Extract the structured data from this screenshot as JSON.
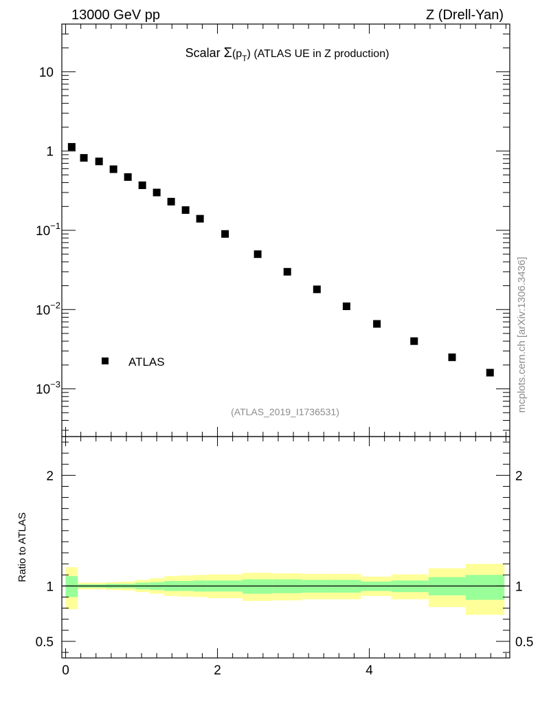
{
  "header": {
    "left": "13000 GeV pp",
    "right": "Z (Drell-Yan)"
  },
  "side_text": "mcplots.cern.ch [arXiv:1306.3436]",
  "chart_data": [
    {
      "type": "scatter",
      "title_parts": {
        "prefix": "Scalar ",
        "sigma": "Σ",
        "open": "(p",
        "sub": "T",
        "close": ")",
        "suffix": " (ATLAS UE in Z production)"
      },
      "yscale": "log",
      "ylim": [
        0.00025,
        40
      ],
      "xlim": [
        -0.05,
        5.85
      ],
      "yticks": [
        {
          "value": 10,
          "base": "10",
          "exp": ""
        },
        {
          "value": 1,
          "base": "1",
          "exp": ""
        },
        {
          "value": 0.1,
          "base": "10",
          "exp": "−1"
        },
        {
          "value": 0.01,
          "base": "10",
          "exp": "−2"
        },
        {
          "value": 0.001,
          "base": "10",
          "exp": "−3"
        }
      ],
      "legend": {
        "label": "ATLAS",
        "position": "bottom-left"
      },
      "watermark": "(ATLAS_2019_I1736531)",
      "series": [
        {
          "name": "ATLAS",
          "marker": "square",
          "color": "#000000",
          "x": [
            0.08,
            0.24,
            0.44,
            0.63,
            0.82,
            1.01,
            1.2,
            1.39,
            1.58,
            1.77,
            2.1,
            2.53,
            2.92,
            3.31,
            3.7,
            4.1,
            4.59,
            5.09,
            5.59
          ],
          "y": [
            1.13,
            0.82,
            0.74,
            0.59,
            0.47,
            0.37,
            0.3,
            0.23,
            0.18,
            0.14,
            0.09,
            0.05,
            0.03,
            0.018,
            0.011,
            0.0066,
            0.004,
            0.0025,
            0.0016
          ]
        }
      ]
    },
    {
      "type": "area",
      "ylabel": "Ratio to ATLAS",
      "ylim": [
        0.35,
        2.35
      ],
      "xlim": [
        -0.05,
        5.85
      ],
      "xticks": [
        0,
        2,
        4
      ],
      "yticks": [
        0.5,
        1,
        2
      ],
      "reference_line": 1,
      "bands": [
        {
          "color": "#ffff99",
          "bins": [
            {
              "x0": 0.0,
              "x1": 0.16,
              "lo": 0.79,
              "hi": 1.17
            },
            {
              "x0": 0.16,
              "x1": 0.34,
              "lo": 0.97,
              "hi": 1.03
            },
            {
              "x0": 0.34,
              "x1": 0.53,
              "lo": 0.97,
              "hi": 1.03
            },
            {
              "x0": 0.53,
              "x1": 0.73,
              "lo": 0.965,
              "hi": 1.035
            },
            {
              "x0": 0.73,
              "x1": 0.92,
              "lo": 0.96,
              "hi": 1.04
            },
            {
              "x0": 0.92,
              "x1": 1.11,
              "lo": 0.945,
              "hi": 1.055
            },
            {
              "x0": 1.11,
              "x1": 1.3,
              "lo": 0.93,
              "hi": 1.07
            },
            {
              "x0": 1.3,
              "x1": 1.49,
              "lo": 0.91,
              "hi": 1.09
            },
            {
              "x0": 1.49,
              "x1": 1.68,
              "lo": 0.905,
              "hi": 1.095
            },
            {
              "x0": 1.68,
              "x1": 1.87,
              "lo": 0.9,
              "hi": 1.1
            },
            {
              "x0": 1.87,
              "x1": 2.33,
              "lo": 0.89,
              "hi": 1.105
            },
            {
              "x0": 2.33,
              "x1": 2.72,
              "lo": 0.865,
              "hi": 1.12
            },
            {
              "x0": 2.72,
              "x1": 3.11,
              "lo": 0.87,
              "hi": 1.115
            },
            {
              "x0": 3.11,
              "x1": 3.5,
              "lo": 0.88,
              "hi": 1.11
            },
            {
              "x0": 3.5,
              "x1": 3.89,
              "lo": 0.88,
              "hi": 1.11
            },
            {
              "x0": 3.89,
              "x1": 4.29,
              "lo": 0.91,
              "hi": 1.085
            },
            {
              "x0": 4.29,
              "x1": 4.78,
              "lo": 0.88,
              "hi": 1.105
            },
            {
              "x0": 4.78,
              "x1": 5.27,
              "lo": 0.81,
              "hi": 1.16
            },
            {
              "x0": 5.27,
              "x1": 5.78,
              "lo": 0.74,
              "hi": 1.2
            }
          ]
        },
        {
          "color": "#99ff99",
          "bins": [
            {
              "x0": 0.0,
              "x1": 0.16,
              "lo": 0.9,
              "hi": 1.09
            },
            {
              "x0": 0.16,
              "x1": 0.34,
              "lo": 0.985,
              "hi": 1.015
            },
            {
              "x0": 0.34,
              "x1": 0.53,
              "lo": 0.985,
              "hi": 1.015
            },
            {
              "x0": 0.53,
              "x1": 0.73,
              "lo": 0.98,
              "hi": 1.02
            },
            {
              "x0": 0.73,
              "x1": 0.92,
              "lo": 0.98,
              "hi": 1.02
            },
            {
              "x0": 0.92,
              "x1": 1.11,
              "lo": 0.97,
              "hi": 1.03
            },
            {
              "x0": 1.11,
              "x1": 1.3,
              "lo": 0.965,
              "hi": 1.035
            },
            {
              "x0": 1.3,
              "x1": 1.49,
              "lo": 0.955,
              "hi": 1.045
            },
            {
              "x0": 1.49,
              "x1": 1.68,
              "lo": 0.955,
              "hi": 1.045
            },
            {
              "x0": 1.68,
              "x1": 1.87,
              "lo": 0.95,
              "hi": 1.05
            },
            {
              "x0": 1.87,
              "x1": 2.33,
              "lo": 0.95,
              "hi": 1.05
            },
            {
              "x0": 2.33,
              "x1": 2.72,
              "lo": 0.93,
              "hi": 1.06
            },
            {
              "x0": 2.72,
              "x1": 3.11,
              "lo": 0.935,
              "hi": 1.06
            },
            {
              "x0": 3.11,
              "x1": 3.5,
              "lo": 0.94,
              "hi": 1.055
            },
            {
              "x0": 3.5,
              "x1": 3.89,
              "lo": 0.94,
              "hi": 1.055
            },
            {
              "x0": 3.89,
              "x1": 4.29,
              "lo": 0.955,
              "hi": 1.04
            },
            {
              "x0": 4.29,
              "x1": 4.78,
              "lo": 0.945,
              "hi": 1.05
            },
            {
              "x0": 4.78,
              "x1": 5.27,
              "lo": 0.915,
              "hi": 1.08
            },
            {
              "x0": 5.27,
              "x1": 5.78,
              "lo": 0.875,
              "hi": 1.1
            }
          ]
        }
      ]
    }
  ]
}
